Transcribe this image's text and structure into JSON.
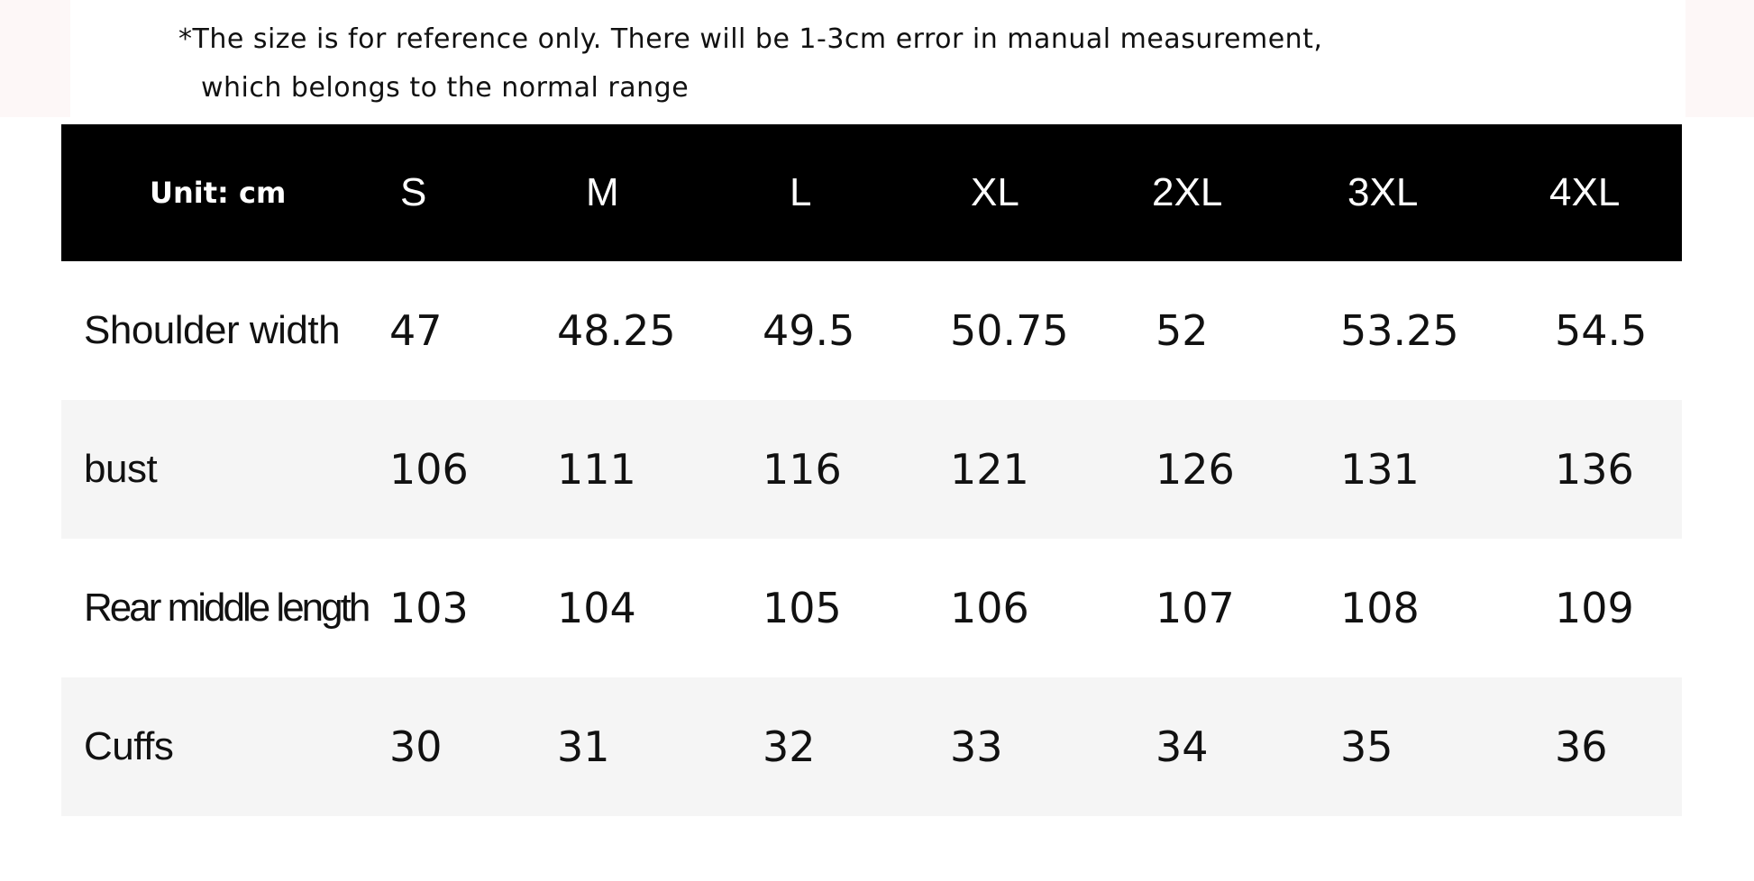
{
  "notice": {
    "line1": "*The size is for reference only. There will be 1-3cm error in manual measurement,",
    "line2": "which belongs to the normal range"
  },
  "table": {
    "unit_label": "Unit: cm",
    "sizes": [
      "S",
      "M",
      "L",
      "XL",
      "2XL",
      "3XL",
      "4XL"
    ],
    "rows": [
      {
        "label": "Shoulder width",
        "values": [
          "47",
          "48.25",
          "49.5",
          "50.75",
          "52",
          "53.25",
          "54.5"
        ]
      },
      {
        "label": "bust",
        "values": [
          "106",
          "111",
          "116",
          "121",
          "126",
          "131",
          "136"
        ]
      },
      {
        "label": "Rear middle length",
        "values": [
          "103",
          "104",
          "105",
          "106",
          "107",
          "108",
          "109"
        ]
      },
      {
        "label": "Cuffs",
        "values": [
          "30",
          "31",
          "32",
          "33",
          "34",
          "35",
          "36"
        ]
      }
    ]
  }
}
